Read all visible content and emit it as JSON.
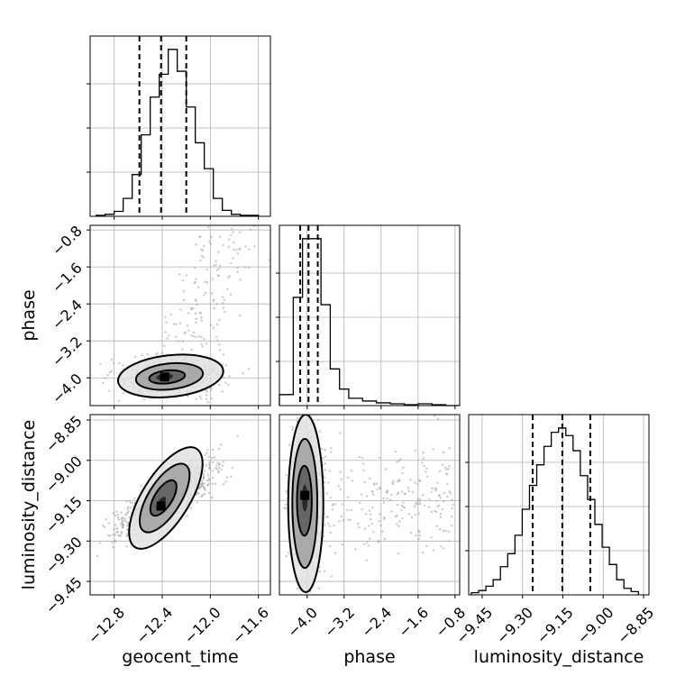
{
  "chart_data": {
    "type": "corner",
    "parameters": [
      "geocent_time",
      "phase",
      "luminosity_distance"
    ],
    "axis_labels": {
      "bottom": [
        "geocent_time",
        "phase",
        "luminosity_distance"
      ],
      "left": [
        "phase",
        "luminosity_distance"
      ]
    },
    "grid": true,
    "ranges": {
      "geocent_time": [
        -13.0,
        -11.5
      ],
      "phase": [
        -4.6,
        -0.7
      ],
      "luminosity_distance": [
        -9.5,
        -8.83
      ]
    },
    "ticks": {
      "geocent_time": {
        "values": [
          -12.8,
          -12.4,
          -12.0,
          -11.6
        ],
        "labels": [
          "−12.8",
          "−12.4",
          "−12.0",
          "−11.6"
        ]
      },
      "phase_x": {
        "values": [
          -4.0,
          -3.2,
          -2.4,
          -1.6,
          -0.8
        ],
        "labels": [
          "−4.0",
          "−3.2",
          "−2.4",
          "−1.6",
          "−0.8"
        ]
      },
      "phase_y": {
        "values": [
          -4.0,
          -3.2,
          -2.4,
          -1.6,
          -0.8
        ],
        "labels": [
          "−4.0",
          "−3.2",
          "−2.4",
          "−1.6",
          "−0.8"
        ]
      },
      "luminosity_distance": {
        "values": [
          -9.45,
          -9.3,
          -9.15,
          -9.0,
          -8.85
        ],
        "labels": [
          "−9.45",
          "−9.30",
          "−9.15",
          "−9.00",
          "−8.85"
        ]
      }
    },
    "histograms": [
      {
        "parameter": "geocent_time",
        "bin_edges": [
          -12.95,
          -12.875,
          -12.8,
          -12.725,
          -12.65,
          -12.575,
          -12.5,
          -12.425,
          -12.35,
          -12.275,
          -12.2,
          -12.125,
          -12.05,
          -11.975,
          -11.9,
          -11.825,
          -11.75,
          -11.675,
          -11.6
        ],
        "counts": [
          1,
          2,
          5,
          18,
          42,
          82,
          120,
          143,
          168,
          146,
          110,
          74,
          48,
          18,
          6,
          2,
          1,
          1
        ],
        "quantiles": [
          -12.59,
          -12.41,
          -12.2
        ]
      },
      {
        "parameter": "phase",
        "bin_edges": [
          -4.6,
          -4.3,
          -4.1,
          -3.9,
          -3.7,
          -3.5,
          -3.3,
          -3.1,
          -2.8,
          -2.5,
          -2.2,
          -1.9,
          -1.6,
          -1.3,
          -1.0,
          -0.7
        ],
        "counts": [
          12,
          118,
          182,
          182,
          110,
          40,
          18,
          8,
          5,
          3,
          2,
          1,
          2,
          1,
          0
        ],
        "quantiles": [
          -4.15,
          -3.97,
          -3.77
        ]
      },
      {
        "parameter": "luminosity_distance",
        "bin_edges": [
          -9.49,
          -9.463,
          -9.436,
          -9.409,
          -9.382,
          -9.355,
          -9.328,
          -9.301,
          -9.274,
          -9.247,
          -9.22,
          -9.193,
          -9.166,
          -9.139,
          -9.112,
          -9.085,
          -9.058,
          -9.031,
          -9.004,
          -8.977,
          -8.95,
          -8.923,
          -8.896,
          -8.869
        ],
        "counts": [
          2,
          4,
          8,
          14,
          26,
          38,
          55,
          79,
          101,
          120,
          137,
          150,
          154,
          147,
          133,
          110,
          88,
          65,
          44,
          28,
          14,
          6,
          3
        ],
        "quantiles": [
          -9.262,
          -9.152,
          -9.048
        ]
      }
    ],
    "contours_2d": [
      {
        "x": "geocent_time",
        "y": "phase",
        "peak": [
          -12.38,
          -3.98
        ],
        "levels": [
          {
            "center": [
              -12.38,
              -3.98
            ],
            "rx": 0.07,
            "ry": 0.07
          },
          {
            "center": [
              -12.36,
              -3.98
            ],
            "rx": 0.15,
            "ry": 0.14
          },
          {
            "center": [
              -12.34,
              -3.97
            ],
            "rx": 0.28,
            "ry": 0.28
          },
          {
            "center": [
              -12.33,
              -3.96
            ],
            "rx": 0.44,
            "ry": 0.45
          }
        ]
      },
      {
        "x": "geocent_time",
        "y": "luminosity_distance",
        "peak": [
          -12.41,
          -9.17
        ],
        "levels": [
          {
            "center": [
              -12.41,
              -9.16
            ],
            "rx": 0.06,
            "ry": 0.022
          },
          {
            "center": [
              -12.39,
              -9.14
            ],
            "rx": 0.16,
            "ry": 0.06
          },
          {
            "center": [
              -12.38,
              -9.14
            ],
            "rx": 0.31,
            "ry": 0.11
          },
          {
            "center": [
              -12.37,
              -9.14
            ],
            "rx": 0.46,
            "ry": 0.16
          }
        ]
      },
      {
        "x": "phase",
        "y": "luminosity_distance",
        "peak": [
          -4.05,
          -9.13
        ],
        "levels": [
          {
            "center": [
              -4.05,
              -9.14
            ],
            "rx": 0.06,
            "ry": 0.05
          },
          {
            "center": [
              -4.06,
              -9.15
            ],
            "rx": 0.16,
            "ry": 0.13
          },
          {
            "center": [
              -4.05,
              -9.16
            ],
            "rx": 0.27,
            "ry": 0.24
          },
          {
            "center": [
              -4.03,
              -9.16
            ],
            "rx": 0.38,
            "ry": 0.33
          }
        ]
      }
    ]
  }
}
